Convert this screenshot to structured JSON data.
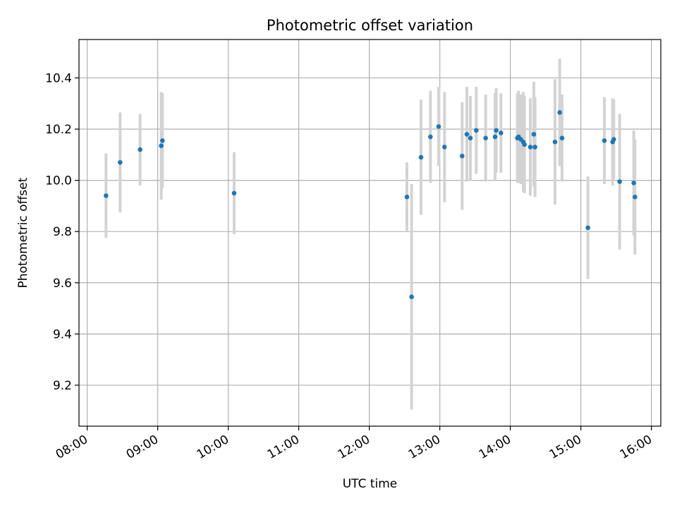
{
  "chart_data": {
    "type": "scatter",
    "title": "Photometric offset variation",
    "xlabel": "UTC time",
    "ylabel": "Photometric offset",
    "x_axis_type": "time",
    "xlim": [
      "07:53",
      "16:08"
    ],
    "ylim": [
      9.04,
      10.55
    ],
    "xticks": [
      "08:00",
      "09:00",
      "10:00",
      "11:00",
      "12:00",
      "13:00",
      "14:00",
      "15:00",
      "16:00"
    ],
    "yticks": [
      9.2,
      9.4,
      9.6,
      9.8,
      10.0,
      10.2,
      10.4
    ],
    "grid": true,
    "marker_color": "#1f77b4",
    "errorbar_color": "#d3d3d3",
    "series": [
      {
        "points": [
          {
            "time": "08:16",
            "y": 9.94,
            "err": 0.165
          },
          {
            "time": "08:28",
            "y": 10.07,
            "err": 0.195
          },
          {
            "time": "08:45",
            "y": 10.12,
            "err": 0.14
          },
          {
            "time": "09:03",
            "y": 10.135,
            "err": 0.21
          },
          {
            "time": "09:04",
            "y": 10.155,
            "err": 0.185
          },
          {
            "time": "10:05",
            "y": 9.95,
            "err": 0.16
          },
          {
            "time": "12:32",
            "y": 9.935,
            "err": 0.135
          },
          {
            "time": "12:36",
            "y": 9.545,
            "err": 0.44
          },
          {
            "time": "12:44",
            "y": 10.09,
            "err": 0.225
          },
          {
            "time": "12:52",
            "y": 10.17,
            "err": 0.18
          },
          {
            "time": "12:59",
            "y": 10.21,
            "err": 0.155
          },
          {
            "time": "13:04",
            "y": 10.13,
            "err": 0.215
          },
          {
            "time": "13:19",
            "y": 10.095,
            "err": 0.21
          },
          {
            "time": "13:23",
            "y": 10.18,
            "err": 0.185
          },
          {
            "time": "13:26",
            "y": 10.165,
            "err": 0.165
          },
          {
            "time": "13:31",
            "y": 10.195,
            "err": 0.17
          },
          {
            "time": "13:39",
            "y": 10.165,
            "err": 0.17
          },
          {
            "time": "13:47",
            "y": 10.17,
            "err": 0.17
          },
          {
            "time": "13:48",
            "y": 10.195,
            "err": 0.165
          },
          {
            "time": "13:52",
            "y": 10.185,
            "err": 0.155
          },
          {
            "time": "14:06",
            "y": 10.165,
            "err": 0.175
          },
          {
            "time": "14:07",
            "y": 10.17,
            "err": 0.18
          },
          {
            "time": "14:09",
            "y": 10.16,
            "err": 0.175
          },
          {
            "time": "14:11",
            "y": 10.15,
            "err": 0.195
          },
          {
            "time": "14:12",
            "y": 10.14,
            "err": 0.19
          },
          {
            "time": "14:17",
            "y": 10.13,
            "err": 0.19
          },
          {
            "time": "14:20",
            "y": 10.18,
            "err": 0.205
          },
          {
            "time": "14:21",
            "y": 10.13,
            "err": 0.195
          },
          {
            "time": "14:38",
            "y": 10.15,
            "err": 0.245
          },
          {
            "time": "14:42",
            "y": 10.265,
            "err": 0.21
          },
          {
            "time": "14:44",
            "y": 10.165,
            "err": 0.17
          },
          {
            "time": "15:06",
            "y": 9.815,
            "err": 0.2
          },
          {
            "time": "15:20",
            "y": 10.155,
            "err": 0.17
          },
          {
            "time": "15:27",
            "y": 10.15,
            "err": 0.17
          },
          {
            "time": "15:28",
            "y": 10.16,
            "err": 0.155
          },
          {
            "time": "15:33",
            "y": 9.995,
            "err": 0.265
          },
          {
            "time": "15:45",
            "y": 9.99,
            "err": 0.205
          },
          {
            "time": "15:46",
            "y": 9.935,
            "err": 0.225
          }
        ]
      }
    ]
  }
}
